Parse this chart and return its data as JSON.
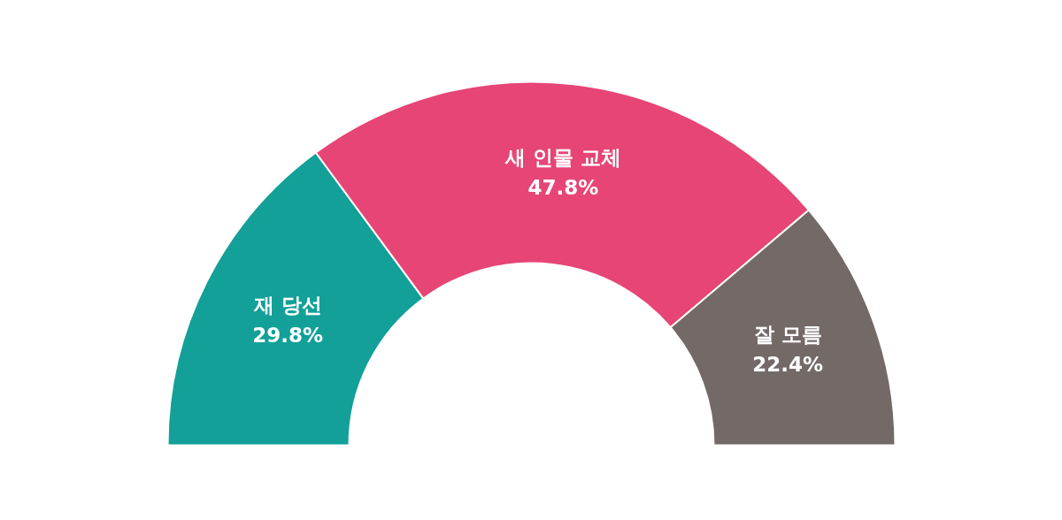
{
  "chart_data": {
    "type": "donut",
    "categories": [
      "재 당선",
      "새 인물 교체",
      "잘 모름"
    ],
    "values": [
      29.8,
      47.8,
      22.4
    ],
    "colors": [
      "#12a098",
      "#e64576",
      "#736a68"
    ],
    "value_labels": [
      "29.8%",
      "47.8%",
      "22.4%"
    ]
  }
}
